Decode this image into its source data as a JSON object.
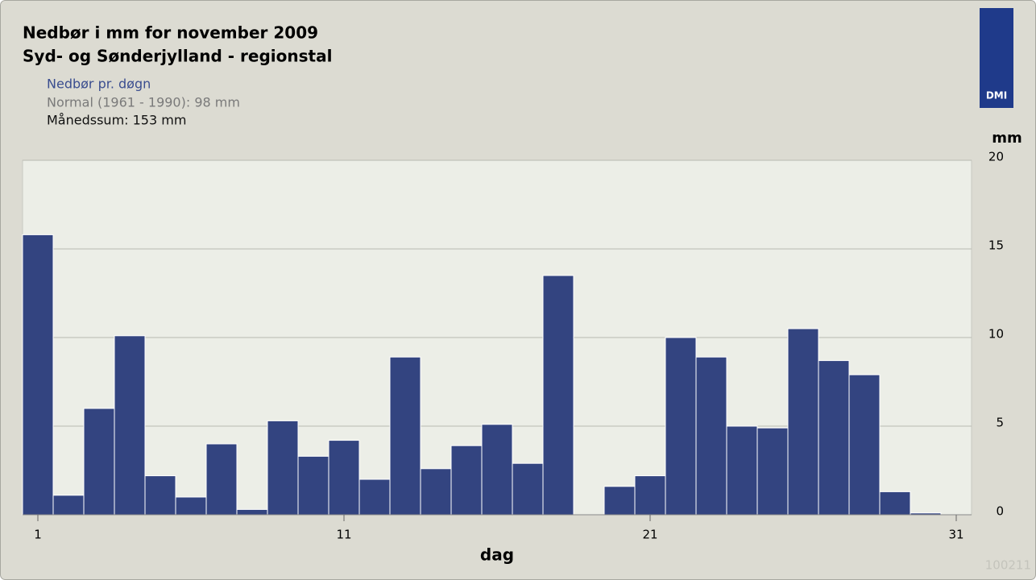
{
  "chart_data": {
    "type": "bar",
    "title": "Nedbør i mm for november 2009",
    "subtitle": "Syd- og Sønderjylland - regionstal",
    "legend_items": [
      "Nedbør pr. døgn",
      "Normal (1961 - 1990): 98 mm",
      "Månedssum: 153 mm"
    ],
    "x_label": "dag",
    "y_label": "mm",
    "logo": "DMI",
    "code": "100211",
    "x": [
      1,
      2,
      3,
      4,
      5,
      6,
      7,
      8,
      9,
      10,
      11,
      12,
      13,
      14,
      15,
      16,
      17,
      18,
      19,
      20,
      21,
      22,
      23,
      24,
      25,
      26,
      27,
      28,
      29,
      30,
      31
    ],
    "values": [
      15.8,
      1.1,
      6.0,
      10.1,
      2.2,
      1.0,
      4.0,
      0.3,
      5.3,
      3.3,
      4.2,
      2.0,
      8.9,
      2.6,
      3.9,
      5.1,
      2.9,
      13.5,
      0,
      1.6,
      2.2,
      10.0,
      8.9,
      5.0,
      4.9,
      10.5,
      8.7,
      7.9,
      1.3,
      0.1,
      0
    ],
    "color": "#334480",
    "xlim": [
      0.5,
      31.5
    ],
    "xticks": [
      1,
      11,
      21,
      31
    ],
    "ylim": [
      0,
      20
    ],
    "yticks": [
      0,
      5,
      10,
      15,
      20
    ],
    "grid": true
  }
}
